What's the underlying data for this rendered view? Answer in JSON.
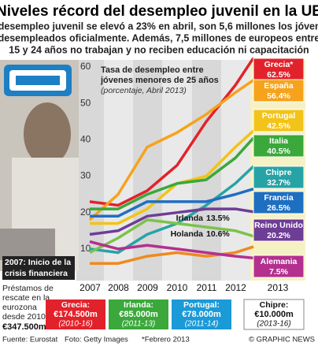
{
  "chart_data": {
    "type": "line",
    "title": "Niveles récord del desempleo juvenil en la UE",
    "subtitle": [
      "El desempleo juvenil se elevó a 23% en abril, son 5,6 millones los jóvenes",
      "desempleados oficialmente. Además, 7,5 millones de europeos entre",
      "15 y 24 años no trabajan y no reciben educación ni capacitación"
    ],
    "chart_title": [
      "Tasa de desempleo entre",
      "jóvenes menores de 25 años"
    ],
    "chart_note": "(porcentaje, Abril 2013)",
    "annotation": [
      "2007: Inicio de la",
      "crisis financiera"
    ],
    "categories": [
      "2007",
      "2008",
      "2009",
      "2010",
      "2011",
      "2012",
      "2013"
    ],
    "ylim": [
      0,
      65
    ],
    "yticks": [
      10,
      20,
      30,
      40,
      50,
      60
    ],
    "grid": false,
    "series": [
      {
        "name": "Grecia*",
        "color": "#e2222b",
        "values": [
          23,
          22,
          26,
          33,
          45,
          55,
          62.5
        ],
        "value_labels": [
          null,
          null,
          null,
          null,
          null,
          null,
          "62.5%"
        ]
      },
      {
        "name": "España",
        "color": "#f7a21b",
        "values": [
          18,
          25,
          38,
          42,
          47,
          53,
          56.4
        ],
        "value_labels": [
          null,
          null,
          null,
          null,
          null,
          null,
          "56.4%"
        ]
      },
      {
        "name": "Portugal",
        "color": "#f2c318",
        "values": [
          17,
          17,
          21,
          28,
          30,
          38,
          42.5
        ],
        "value_labels": [
          null,
          null,
          null,
          null,
          null,
          null,
          "42.5%"
        ]
      },
      {
        "name": "Italia",
        "color": "#3aa83a",
        "values": [
          21,
          21,
          25,
          28,
          29,
          35,
          40.5
        ],
        "value_labels": [
          null,
          null,
          null,
          null,
          null,
          null,
          "40.5%"
        ]
      },
      {
        "name": "Chipre",
        "color": "#27a3a6",
        "values": [
          10,
          9,
          14,
          17,
          22,
          28,
          32.7
        ],
        "value_labels": [
          null,
          null,
          null,
          null,
          null,
          null,
          "32.7%"
        ]
      },
      {
        "name": "Francia",
        "color": "#1f6fc1",
        "values": [
          19,
          19,
          23,
          23,
          23,
          25,
          26.5
        ],
        "value_labels": [
          null,
          null,
          null,
          null,
          null,
          null,
          "26.5%"
        ]
      },
      {
        "name": "Reino Unido",
        "color": "#6e3d96",
        "values": [
          14,
          15,
          19,
          20,
          21,
          21,
          20.2
        ],
        "value_labels": [
          null,
          null,
          null,
          null,
          null,
          null,
          "20.2%"
        ]
      },
      {
        "name": "Irlanda",
        "color": "#7cc24c",
        "values": [
          9,
          13,
          18,
          17,
          16,
          15,
          13.5
        ],
        "value_labels": [
          null,
          null,
          null,
          null,
          null,
          null,
          "13.5%"
        ]
      },
      {
        "name": "Holanda",
        "color": "#ef8a1e",
        "values": [
          6,
          6,
          8,
          9,
          8,
          9,
          10.6
        ],
        "value_labels": [
          null,
          null,
          null,
          null,
          null,
          null,
          "10.6%"
        ]
      },
      {
        "name": "Alemania",
        "color": "#b3308f",
        "values": [
          12,
          10,
          11,
          10,
          9,
          8,
          7.5
        ],
        "value_labels": [
          null,
          null,
          null,
          null,
          null,
          null,
          "7.5%"
        ]
      }
    ],
    "rescue_title": [
      "Préstamos de",
      "rescate en la",
      "eurozona",
      "desde 2010"
    ],
    "rescue_total": "€347.500m",
    "rescues": [
      {
        "country": "Grecia:",
        "amount": "€174.500m",
        "period": "(2010-16)",
        "color": "#e2222b"
      },
      {
        "country": "Irlanda:",
        "amount": "€85.000m",
        "period": "(2011-13)",
        "color": "#3aa83a"
      },
      {
        "country": "Portugal:",
        "amount": "€78.000m",
        "period": "(2011-14)",
        "color": "#1b9ad8"
      },
      {
        "country": "Chipre:",
        "amount": "€10.000m",
        "period": "(2013-16)",
        "color": "#ffffff"
      }
    ],
    "source": "Fuente: Eurostat",
    "photo": "Foto: Getty Images",
    "footnote": "*Febrero 2013",
    "credit": "© GRAPHIC NEWS"
  }
}
